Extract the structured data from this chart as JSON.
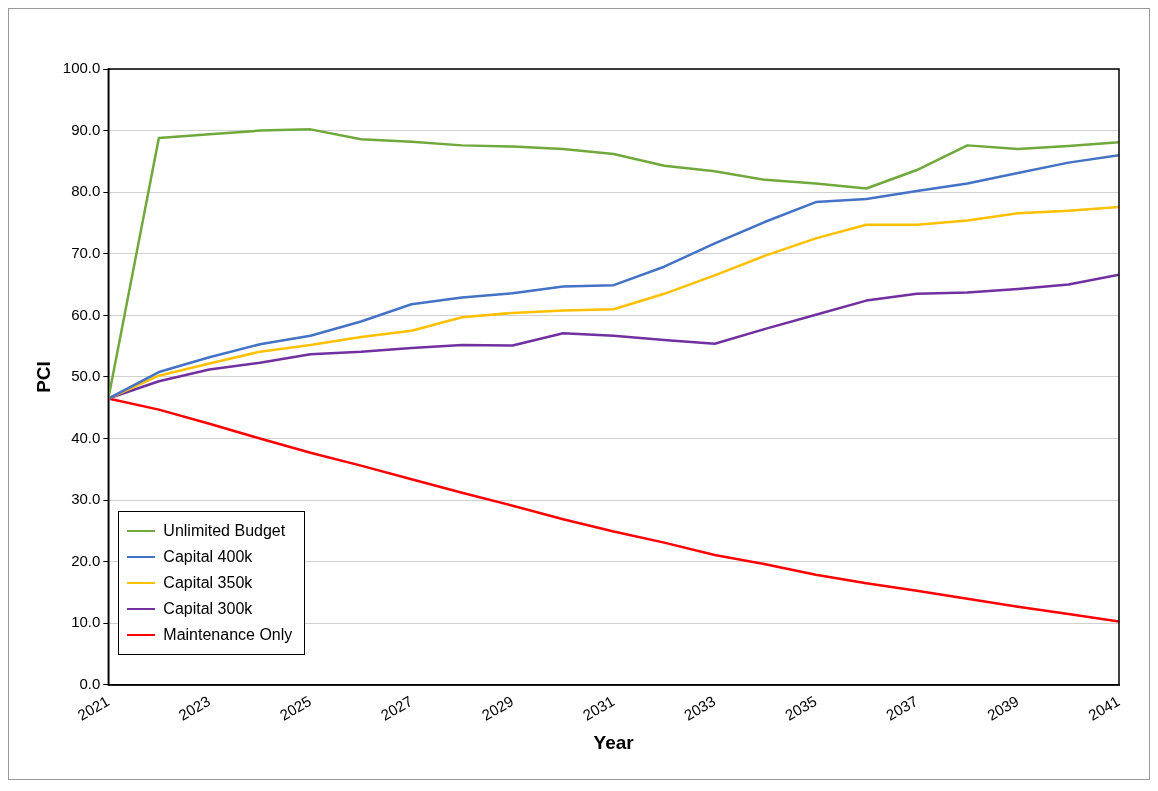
{
  "chart_data": {
    "type": "line",
    "xlabel": "Year",
    "ylabel": "PCI",
    "x": [
      2021,
      2022,
      2023,
      2024,
      2025,
      2026,
      2027,
      2028,
      2029,
      2030,
      2031,
      2032,
      2033,
      2034,
      2035,
      2036,
      2037,
      2038,
      2039,
      2040,
      2041
    ],
    "xlim": [
      2021,
      2041
    ],
    "xticks": [
      2021,
      2023,
      2025,
      2027,
      2029,
      2031,
      2033,
      2035,
      2037,
      2039,
      2041
    ],
    "ylim": [
      0,
      100
    ],
    "yticks": [
      {
        "value": 0,
        "label": "0.0"
      },
      {
        "value": 10,
        "label": "10.0"
      },
      {
        "value": 20,
        "label": "20.0"
      },
      {
        "value": 30,
        "label": "30.0"
      },
      {
        "value": 40,
        "label": "40.0"
      },
      {
        "value": 50,
        "label": "50.0"
      },
      {
        "value": 60,
        "label": "60.0"
      },
      {
        "value": 70,
        "label": "70.0"
      },
      {
        "value": 80,
        "label": "80.0"
      },
      {
        "value": 90,
        "label": "90.0"
      },
      {
        "value": 100,
        "label": "100.0"
      }
    ],
    "grid": "y",
    "legend": "bottom left",
    "marker": "none",
    "line_style": "solid",
    "series": [
      {
        "name": "Unlimited Budget",
        "color": "#70a83c",
        "values": [
          46.5,
          88.8,
          89.4,
          90.0,
          90.2,
          88.6,
          88.2,
          87.6,
          87.4,
          87.0,
          86.2,
          84.3,
          83.4,
          82.0,
          81.4,
          80.6,
          83.6,
          87.6,
          87.0,
          87.5,
          88.1
        ]
      },
      {
        "name": "Capital 400k",
        "color": "#4472c4",
        "values": [
          46.5,
          50.8,
          53.2,
          55.3,
          56.7,
          59.0,
          61.8,
          62.9,
          63.6,
          64.7,
          64.9,
          67.9,
          71.7,
          75.2,
          78.4,
          78.9,
          80.2,
          81.4,
          83.1,
          84.8,
          86.0
        ]
      },
      {
        "name": "Capital 350k",
        "color": "#ffc000",
        "values": [
          46.5,
          50.2,
          52.2,
          54.1,
          55.2,
          56.5,
          57.5,
          59.7,
          60.4,
          60.8,
          61.0,
          63.5,
          66.5,
          69.7,
          72.5,
          74.7,
          74.7,
          75.4,
          76.6,
          77.0,
          77.6
        ]
      },
      {
        "name": "Capital 300k",
        "color": "#7030a0",
        "values": [
          46.5,
          49.3,
          51.2,
          52.3,
          53.7,
          54.1,
          54.7,
          55.2,
          55.1,
          57.1,
          56.7,
          56.0,
          55.4,
          57.8,
          60.1,
          62.4,
          63.5,
          63.7,
          64.3,
          65.0,
          66.6
        ]
      },
      {
        "name": "Maintenance Only",
        "color": "#ff0000",
        "values": [
          46.5,
          44.7,
          42.4,
          40.0,
          37.7,
          35.6,
          33.4,
          31.2,
          29.1,
          26.9,
          24.9,
          23.1,
          21.1,
          19.6,
          17.9,
          16.5,
          15.3,
          14.0,
          12.7,
          11.5,
          10.3
        ]
      }
    ]
  }
}
